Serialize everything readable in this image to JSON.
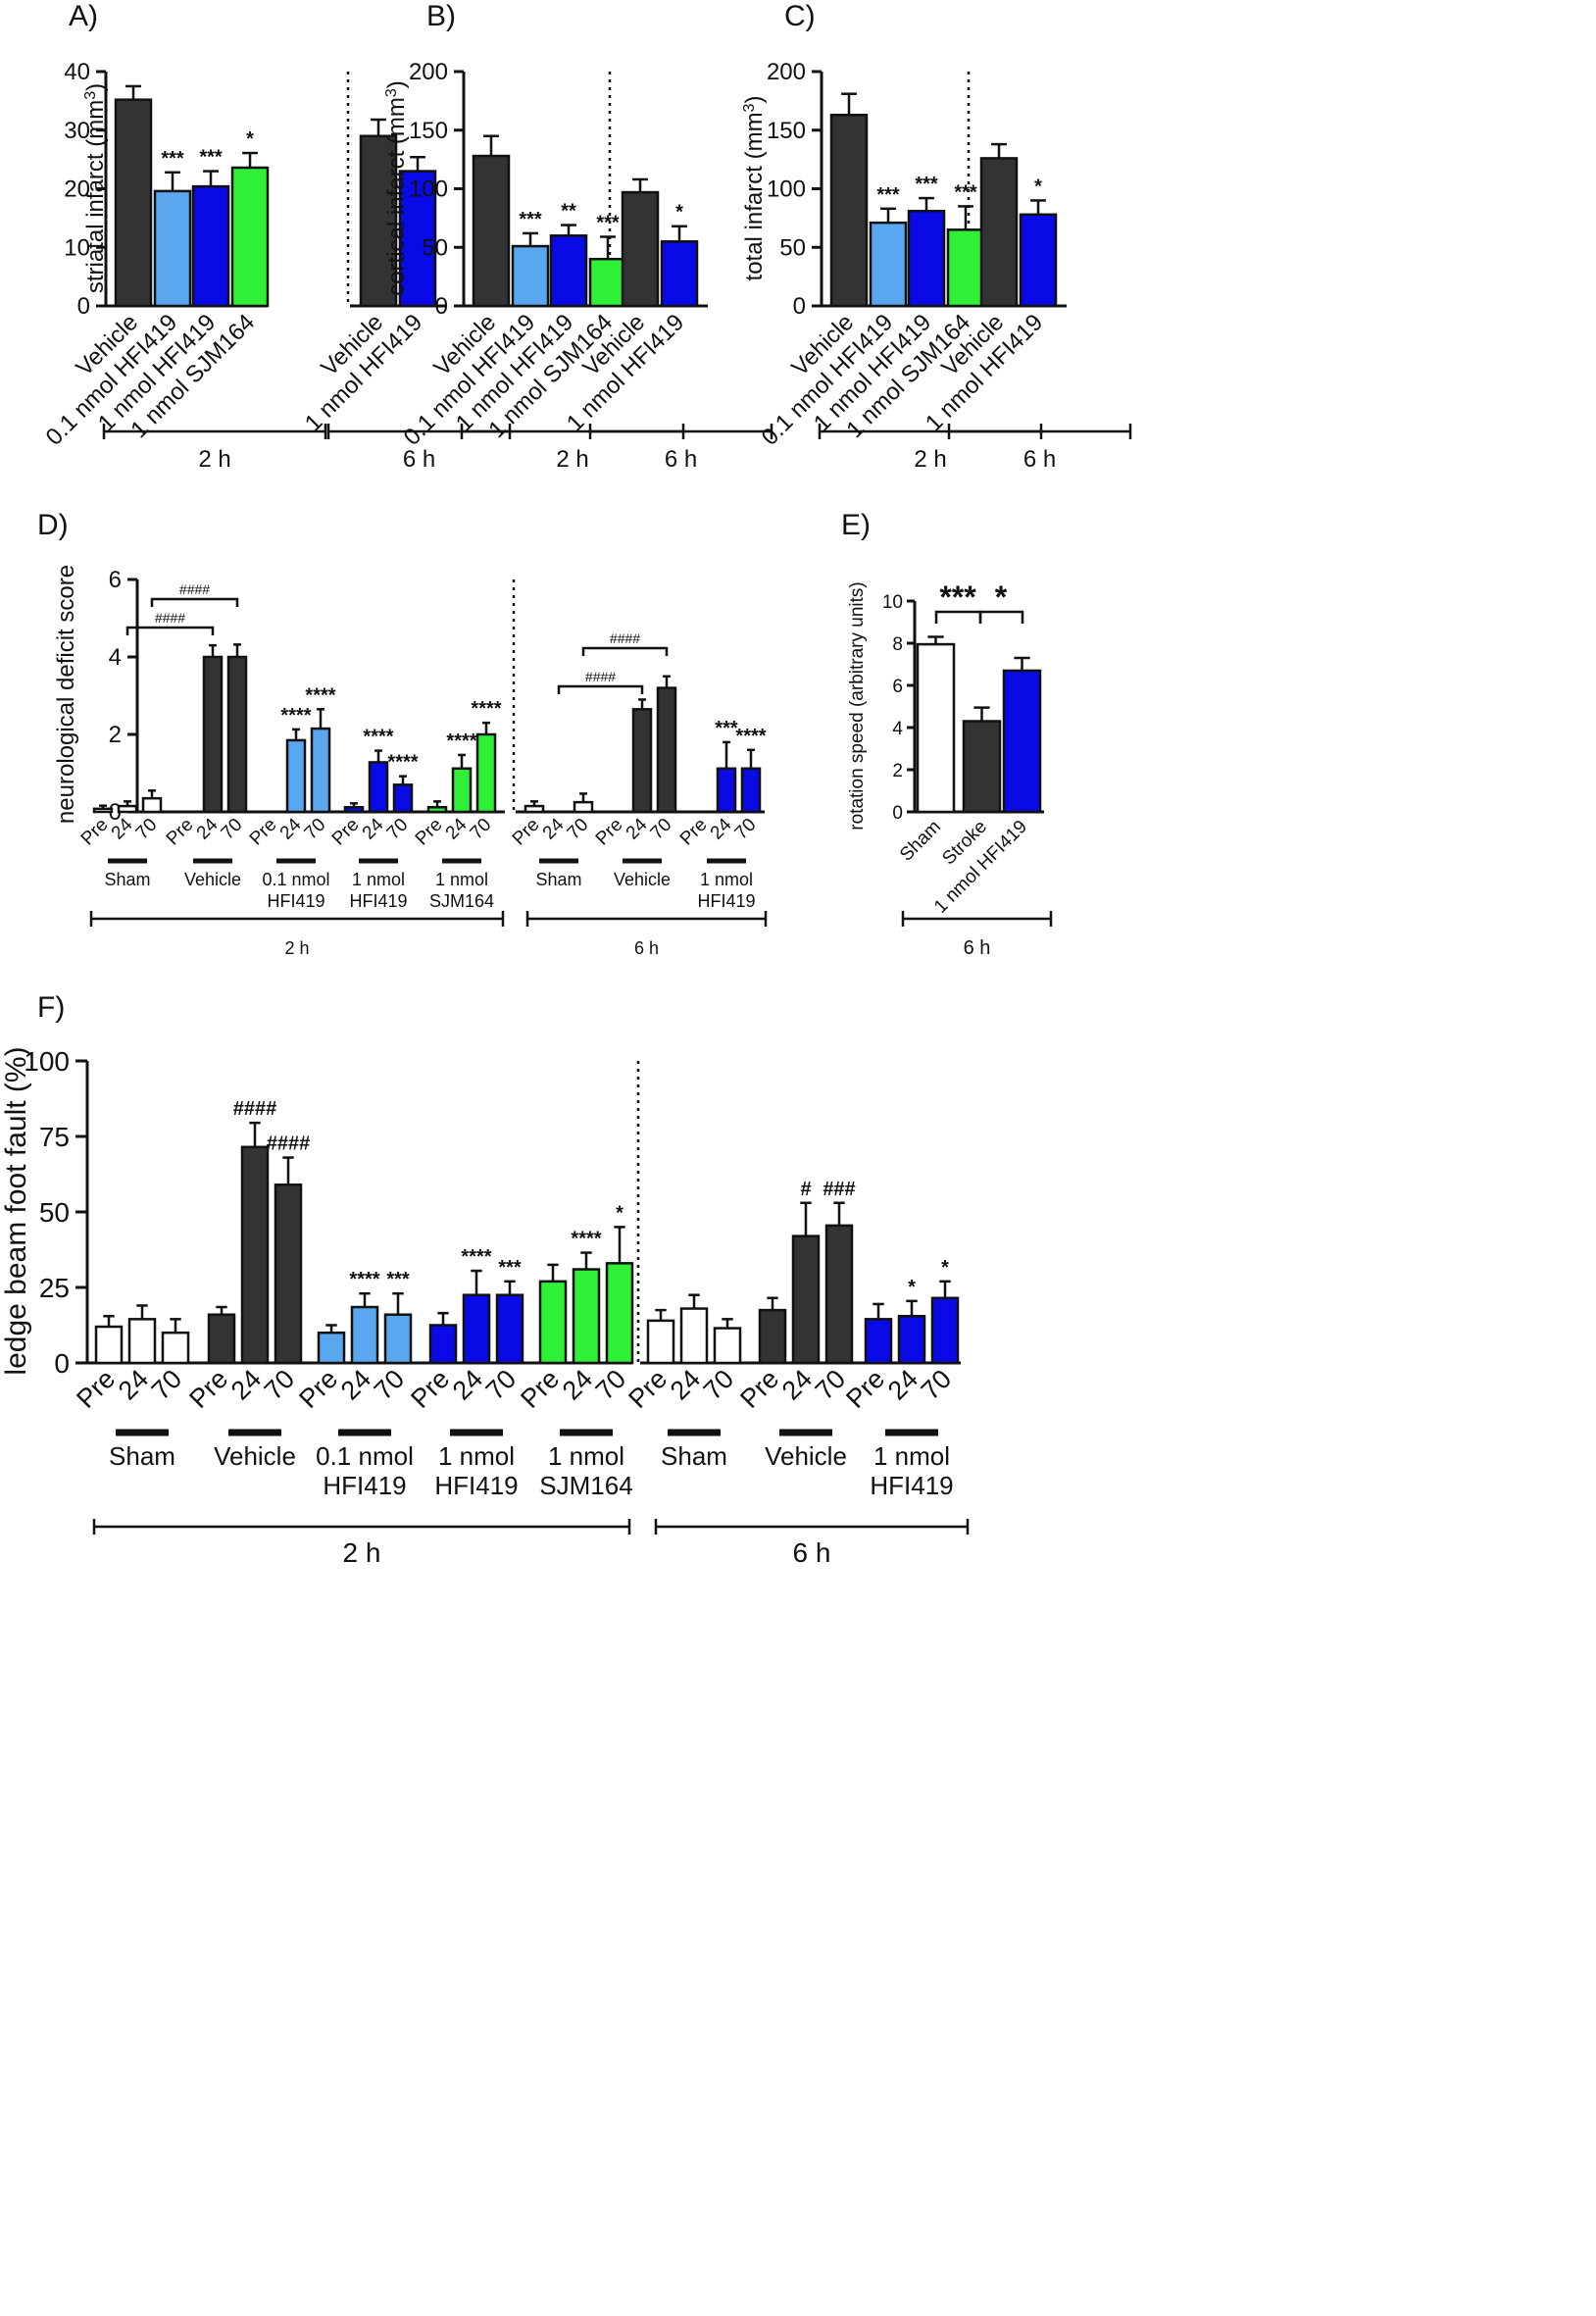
{
  "colors": {
    "white": "#ffffff",
    "dark": "#333333",
    "lightblue": "#5aa7f0",
    "blue": "#0a0ae6",
    "green": "#2ff036"
  },
  "chart_data": [
    {
      "id": "A",
      "panel_label": "A)",
      "type": "bar",
      "ylabel": "striatal infarct (mm3)",
      "ylim": [
        0,
        40
      ],
      "yticks": [
        "0",
        "10",
        "20",
        "30",
        "40"
      ],
      "categories": [
        "Vehicle",
        "0.1 nmol HFI419",
        "1 nmol HFI419",
        "1 nmol SJM164",
        "Vehicle",
        "1 nmol HFI419"
      ],
      "values": [
        35.2,
        19.6,
        20.4,
        23.6,
        29.0,
        23.0
      ],
      "errors": [
        2.3,
        3.2,
        2.6,
        2.5,
        2.8,
        2.4
      ],
      "colors": [
        "dark",
        "lightblue",
        "blue",
        "green",
        "dark",
        "blue"
      ],
      "significance": [
        "",
        "***",
        "***",
        "*",
        "",
        ""
      ],
      "groups": [
        {
          "label": "2 h"
        },
        {
          "label": "6 h"
        }
      ]
    },
    {
      "id": "B",
      "panel_label": "B)",
      "type": "bar",
      "ylabel": "cortical infarct (mm3)",
      "ylim": [
        0,
        200
      ],
      "yticks": [
        "0",
        "50",
        "100",
        "150",
        "200"
      ],
      "categories": [
        "Vehicle",
        "0.1 nmol HFI419",
        "1 nmol HFI419",
        "1 nmol SJM164",
        "Vehicle",
        "1 nmol HFI419"
      ],
      "values": [
        128,
        51,
        60,
        40,
        97,
        55
      ],
      "errors": [
        17,
        11,
        9,
        19,
        11,
        13
      ],
      "colors": [
        "dark",
        "lightblue",
        "blue",
        "green",
        "dark",
        "blue"
      ],
      "significance": [
        "",
        "***",
        "**",
        "***",
        "",
        "*"
      ],
      "groups": [
        {
          "label": "2 h"
        },
        {
          "label": "6 h"
        }
      ]
    },
    {
      "id": "C",
      "panel_label": "C)",
      "type": "bar",
      "ylabel": "total infarct (mm3)",
      "ylim": [
        0,
        200
      ],
      "yticks": [
        "0",
        "50",
        "100",
        "150",
        "200"
      ],
      "categories": [
        "Vehicle",
        "0.1 nmol HFI419",
        "1 nmol HFI419",
        "1 nmol SJM164",
        "Vehicle",
        "1 nmol HFI419"
      ],
      "values": [
        163,
        71,
        81,
        65,
        126,
        78
      ],
      "errors": [
        18,
        12,
        11,
        20,
        12,
        12
      ],
      "colors": [
        "dark",
        "lightblue",
        "blue",
        "green",
        "dark",
        "blue"
      ],
      "significance": [
        "",
        "***",
        "***",
        "***",
        "",
        "*"
      ],
      "groups": [
        {
          "label": "2 h"
        },
        {
          "label": "6 h"
        }
      ]
    },
    {
      "id": "D",
      "panel_label": "D)",
      "type": "bar",
      "ylabel": "neurological deficit score",
      "ylim": [
        0,
        6
      ],
      "yticks": [
        "0",
        "2",
        "4",
        "6"
      ],
      "timepoints": [
        "Pre",
        "24",
        "70"
      ],
      "groups": [
        {
          "label": "Sham",
          "color": "white",
          "values": [
            0.08,
            0.15,
            0.35
          ],
          "errors": [
            0.08,
            0.12,
            0.2
          ],
          "sig": [
            "",
            "",
            ""
          ]
        },
        {
          "label": "Vehicle",
          "color": "dark",
          "values": [
            0,
            4.0,
            4.0
          ],
          "errors": [
            0,
            0.3,
            0.32
          ],
          "sig": [
            "",
            "",
            ""
          ]
        },
        {
          "label": "0.1 nmol HFI419",
          "color": "lightblue",
          "values": [
            0,
            1.85,
            2.15
          ],
          "errors": [
            0,
            0.28,
            0.5
          ],
          "sig": [
            "",
            "****",
            "****"
          ]
        },
        {
          "label": "1 nmol HFI419",
          "color": "blue",
          "values": [
            0.12,
            1.28,
            0.7
          ],
          "errors": [
            0.1,
            0.3,
            0.22
          ],
          "sig": [
            "",
            "****",
            "****"
          ]
        },
        {
          "label": "1 nmol SJM164",
          "color": "green",
          "values": [
            0.12,
            1.12,
            2.0
          ],
          "errors": [
            0.15,
            0.35,
            0.3
          ],
          "sig": [
            "",
            "****",
            "****"
          ]
        },
        {
          "label": "Sham",
          "color": "white",
          "values": [
            0.15,
            0,
            0.25
          ],
          "errors": [
            0.12,
            0,
            0.22
          ],
          "sig": [
            "",
            "",
            ""
          ]
        },
        {
          "label": "Vehicle",
          "color": "dark",
          "values": [
            0,
            2.65,
            3.2
          ],
          "errors": [
            0,
            0.25,
            0.3
          ],
          "sig": [
            "",
            "",
            ""
          ]
        },
        {
          "label": "1 nmol HFI419",
          "color": "blue",
          "values": [
            0,
            1.12,
            1.12
          ],
          "errors": [
            0,
            0.68,
            0.48
          ],
          "sig": [
            "",
            "***",
            "****"
          ]
        }
      ],
      "hash_brackets": [
        {
          "label": "####"
        },
        {
          "label": "####"
        },
        {
          "label": "####"
        },
        {
          "label": "####"
        }
      ],
      "time_groups": [
        {
          "label": "2 h"
        },
        {
          "label": "6 h"
        }
      ]
    },
    {
      "id": "E",
      "panel_label": "E)",
      "type": "bar",
      "ylabel": "rotation speed (arbitrary units)",
      "ylim": [
        0,
        10
      ],
      "yticks": [
        "0",
        "2",
        "4",
        "6",
        "8",
        "10"
      ],
      "categories": [
        "Sham",
        "Stroke",
        "1 nmol HFI419"
      ],
      "values": [
        7.95,
        4.3,
        6.7
      ],
      "errors": [
        0.35,
        0.65,
        0.6
      ],
      "colors": [
        "white",
        "dark",
        "blue"
      ],
      "comparisons": [
        {
          "label": "***"
        },
        {
          "label": "*"
        }
      ],
      "group_label": "6 h"
    },
    {
      "id": "F",
      "panel_label": "F)",
      "type": "bar",
      "ylabel": "ledge beam foot fault (%)",
      "ylim": [
        0,
        100
      ],
      "yticks": [
        "0",
        "25",
        "50",
        "75",
        "100"
      ],
      "timepoints": [
        "Pre",
        "24",
        "70"
      ],
      "groups": [
        {
          "label": "Sham",
          "color": "white",
          "values": [
            12,
            14.5,
            10
          ],
          "errors": [
            3.5,
            4.5,
            4.5
          ],
          "sig": [
            "",
            "",
            ""
          ]
        },
        {
          "label": "Vehicle",
          "color": "dark",
          "values": [
            16,
            71.5,
            59
          ],
          "errors": [
            2.5,
            8,
            9
          ],
          "sig": [
            "",
            "####",
            "####"
          ]
        },
        {
          "label": "0.1 nmol HFI419",
          "color": "lightblue",
          "values": [
            10,
            18.5,
            16
          ],
          "errors": [
            2.5,
            4.5,
            7
          ],
          "sig": [
            "",
            "****",
            "***"
          ]
        },
        {
          "label": "1 nmol HFI419",
          "color": "blue",
          "values": [
            12.5,
            22.5,
            22.5
          ],
          "errors": [
            4,
            8,
            4.5
          ],
          "sig": [
            "",
            "****",
            "***"
          ]
        },
        {
          "label": "1 nmol SJM164",
          "color": "green",
          "values": [
            27,
            31,
            33
          ],
          "errors": [
            5.5,
            5.5,
            12
          ],
          "sig": [
            "",
            "****",
            "*"
          ]
        },
        {
          "label": "Sham",
          "color": "white",
          "values": [
            14,
            18,
            11.5
          ],
          "errors": [
            3.5,
            4.5,
            3
          ],
          "sig": [
            "",
            "",
            ""
          ]
        },
        {
          "label": "Vehicle",
          "color": "dark",
          "values": [
            17.5,
            42,
            45.5
          ],
          "errors": [
            4,
            11,
            7.5
          ],
          "sig": [
            "",
            "#",
            "###"
          ]
        },
        {
          "label": "1 nmol HFI419",
          "color": "blue",
          "values": [
            14.5,
            15.5,
            21.5
          ],
          "errors": [
            5,
            5,
            5.5
          ],
          "sig": [
            "",
            "*",
            "*"
          ]
        }
      ],
      "time_groups": [
        {
          "label": "2 h"
        },
        {
          "label": "6 h"
        }
      ]
    }
  ]
}
